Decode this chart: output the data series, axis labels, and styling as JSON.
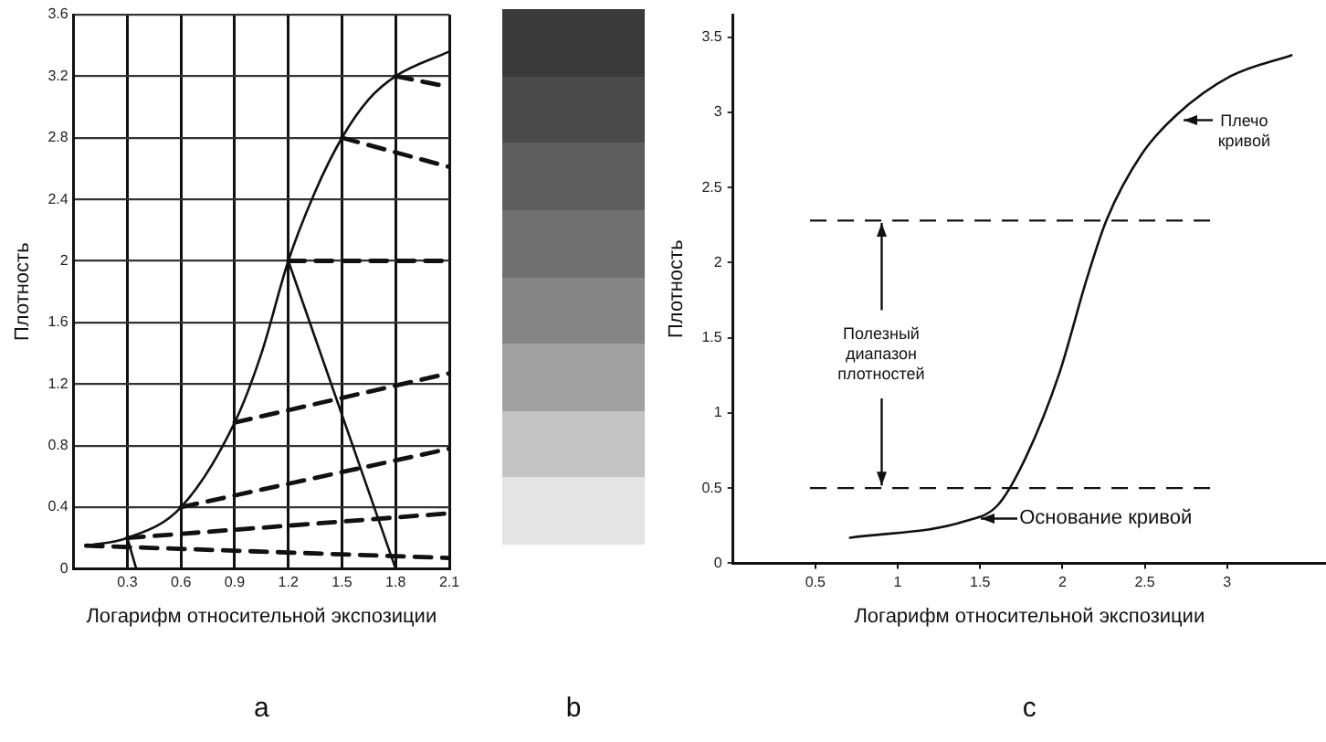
{
  "chart_data": [
    {
      "type": "line",
      "xlabel": "Логарифм относительной экспозиции",
      "ylabel": "Плотность",
      "xlim": [
        0,
        2.1
      ],
      "ylim": [
        0,
        3.6
      ],
      "xticks": [
        {
          "value": 0,
          "label": null
        },
        0.3,
        0.6,
        0.9,
        1.2,
        1.5,
        1.8,
        2.1
      ],
      "yticks": [
        0,
        0.4,
        0.8,
        1.2,
        1.6,
        2.0,
        2.4,
        2.8,
        3.2,
        3.6
      ],
      "grid": true,
      "marker": "none",
      "series": [
        {
          "color": "#111111",
          "x": [
            0.07,
            0.3,
            0.6,
            0.9,
            1.05,
            1.2,
            1.35,
            1.5,
            1.65,
            1.8,
            2.1
          ],
          "values": [
            0.15,
            0.2,
            0.4,
            0.95,
            1.4,
            2.0,
            2.45,
            2.8,
            3.05,
            3.2,
            3.36
          ]
        },
        {
          "color": "#111111",
          "line_style": "dashed",
          "x": [
            1.8,
            2.1
          ],
          "values": [
            3.2,
            3.13
          ]
        },
        {
          "color": "#111111",
          "line_style": "dashed",
          "x": [
            1.5,
            2.1
          ],
          "values": [
            2.8,
            2.61
          ]
        },
        {
          "color": "#111111",
          "line_style": "dashed",
          "x": [
            1.2,
            2.1
          ],
          "values": [
            2.0,
            2.0
          ]
        },
        {
          "color": "#111111",
          "line_style": "dashed",
          "x": [
            0.9,
            2.1
          ],
          "values": [
            0.95,
            1.27
          ]
        },
        {
          "color": "#111111",
          "line_style": "dashed",
          "x": [
            0.6,
            2.1
          ],
          "values": [
            0.4,
            0.78
          ]
        },
        {
          "color": "#111111",
          "line_style": "dashed",
          "x": [
            0.3,
            2.1
          ],
          "values": [
            0.2,
            0.36
          ]
        },
        {
          "color": "#111111",
          "line_style": "dashed",
          "x": [
            0.07,
            2.1
          ],
          "values": [
            0.15,
            0.07
          ]
        },
        {
          "color": "#111111",
          "x": [
            1.2,
            1.8
          ],
          "values": [
            2.0,
            0
          ]
        },
        {
          "color": "#111111",
          "x": [
            0.3,
            0.35
          ],
          "values": [
            0.2,
            0
          ]
        }
      ],
      "annotations": [
        "a",
        "b"
      ]
    },
    {
      "type": "line",
      "xlabel": "Логарифм относительной экспозиции",
      "ylabel": "Плотность",
      "xlim": [
        0,
        3.6
      ],
      "ylim": [
        0,
        3.65
      ],
      "xticks": [
        0.5,
        1.0,
        1.5,
        2.0,
        2.5,
        3.0
      ],
      "yticks": [
        0,
        0.5,
        1.0,
        1.5,
        2.0,
        2.5,
        3.0,
        3.5
      ],
      "grid": false,
      "marker": "none",
      "series": [
        {
          "color": "#111111",
          "x": [
            0.71,
            1.41,
            1.61,
            1.78,
            1.98,
            2.15,
            2.27,
            2.48,
            2.69,
            3.02,
            3.39
          ],
          "values": [
            0.17,
            0.28,
            0.39,
            0.71,
            1.26,
            1.9,
            2.29,
            2.72,
            2.98,
            3.24,
            3.38
          ]
        }
      ],
      "ref_lines": [
        {
          "axis": "y",
          "value": 2.28,
          "line_style": "dashed"
        },
        {
          "axis": "y",
          "value": 0.5,
          "line_style": "dashed"
        }
      ],
      "annotations": [
        {
          "text": "Полезный диапазон плотностей",
          "x": 0.9,
          "y": 2.28
        },
        {
          "text": "Основание кривой",
          "x": 1.45,
          "y": 0.3
        },
        {
          "text": "Плечо кривой",
          "x": 2.7,
          "y": 2.95
        },
        "c"
      ]
    }
  ]
}
